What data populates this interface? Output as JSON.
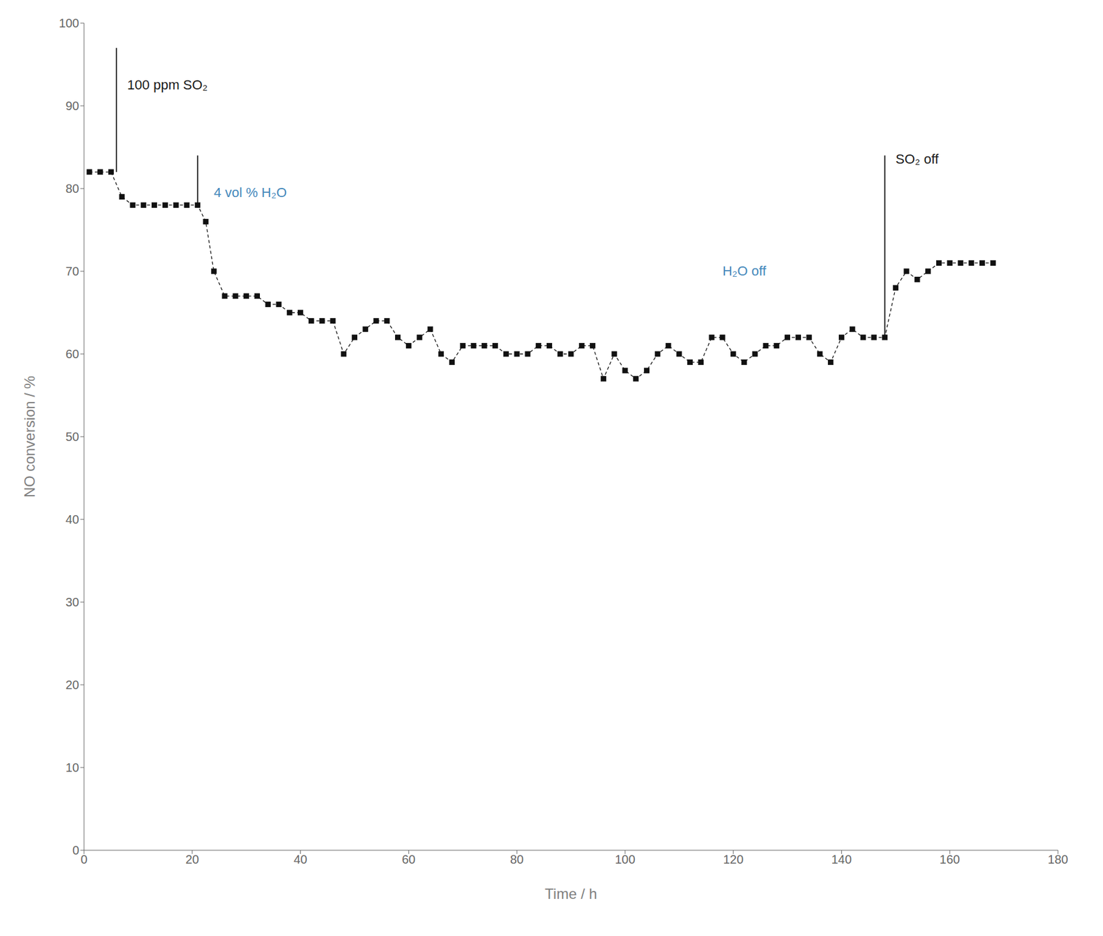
{
  "chart_data": {
    "type": "line",
    "xlabel": "Time / h",
    "ylabel": "NO conversion / %",
    "x": [
      1,
      3,
      5,
      7,
      9,
      11,
      13,
      15,
      17,
      19,
      21,
      22.5,
      24,
      26,
      28,
      30,
      32,
      34,
      36,
      38,
      40,
      42,
      44,
      46,
      48,
      50,
      52,
      54,
      56,
      58,
      60,
      62,
      64,
      66,
      68,
      70,
      72,
      74,
      76,
      78,
      80,
      82,
      84,
      86,
      88,
      90,
      92,
      94,
      96,
      98,
      100,
      102,
      104,
      106,
      108,
      110,
      112,
      114,
      116,
      118,
      120,
      122,
      124,
      126,
      128,
      130,
      132,
      134,
      136,
      138,
      140,
      142,
      144,
      146,
      148,
      150,
      152,
      154,
      156,
      158,
      160,
      162,
      164,
      166,
      168
    ],
    "values": [
      82,
      82,
      82,
      79,
      78,
      78,
      78,
      78,
      78,
      78,
      78,
      76,
      70,
      67,
      67,
      67,
      67,
      66,
      66,
      65,
      65,
      64,
      64,
      64,
      60,
      62,
      63,
      64,
      64,
      62,
      61,
      62,
      63,
      60,
      59,
      61,
      61,
      61,
      61,
      60,
      60,
      60,
      61,
      61,
      60,
      60,
      61,
      61,
      57,
      60,
      58,
      57,
      58,
      60,
      61,
      60,
      59,
      59,
      62,
      62,
      60,
      59,
      60,
      61,
      61,
      62,
      62,
      62,
      60,
      59,
      62,
      63,
      62,
      62,
      62,
      68,
      70,
      69,
      70,
      71,
      71,
      71,
      71,
      71,
      71
    ],
    "color": "#111111",
    "marker": "square",
    "line_style": "dashed",
    "xlim": [
      0,
      180
    ],
    "ylim": [
      0,
      100
    ],
    "xticks": [
      0,
      20,
      40,
      60,
      80,
      100,
      120,
      140,
      160,
      180
    ],
    "yticks": [
      0,
      10,
      20,
      30,
      40,
      50,
      60,
      70,
      80,
      90,
      100
    ],
    "grid": false,
    "vlines": [
      {
        "x": 6,
        "y_bottom": 82,
        "y_top": 97,
        "color": "#111111"
      },
      {
        "x": 21,
        "y_bottom": 78,
        "y_top": 84,
        "color": "#111111"
      },
      {
        "x": 148,
        "y_bottom": 62,
        "y_top": 70,
        "color": "#111111"
      },
      {
        "x": 148,
        "y_bottom": 70,
        "y_top": 84,
        "color": "#111111"
      }
    ],
    "annotations": [
      {
        "text": "100 ppm SO₂",
        "x": 8,
        "y": 92,
        "color": "#1a1a1a"
      },
      {
        "text": "4 vol % H₂O",
        "x": 24,
        "y": 79,
        "color": "#4488bb"
      },
      {
        "text": "SO₂ off",
        "x": 150,
        "y": 83,
        "color": "#1a1a1a"
      },
      {
        "text": "H₂O off",
        "x": 118,
        "y": 69.5,
        "color": "#4488bb"
      }
    ]
  }
}
